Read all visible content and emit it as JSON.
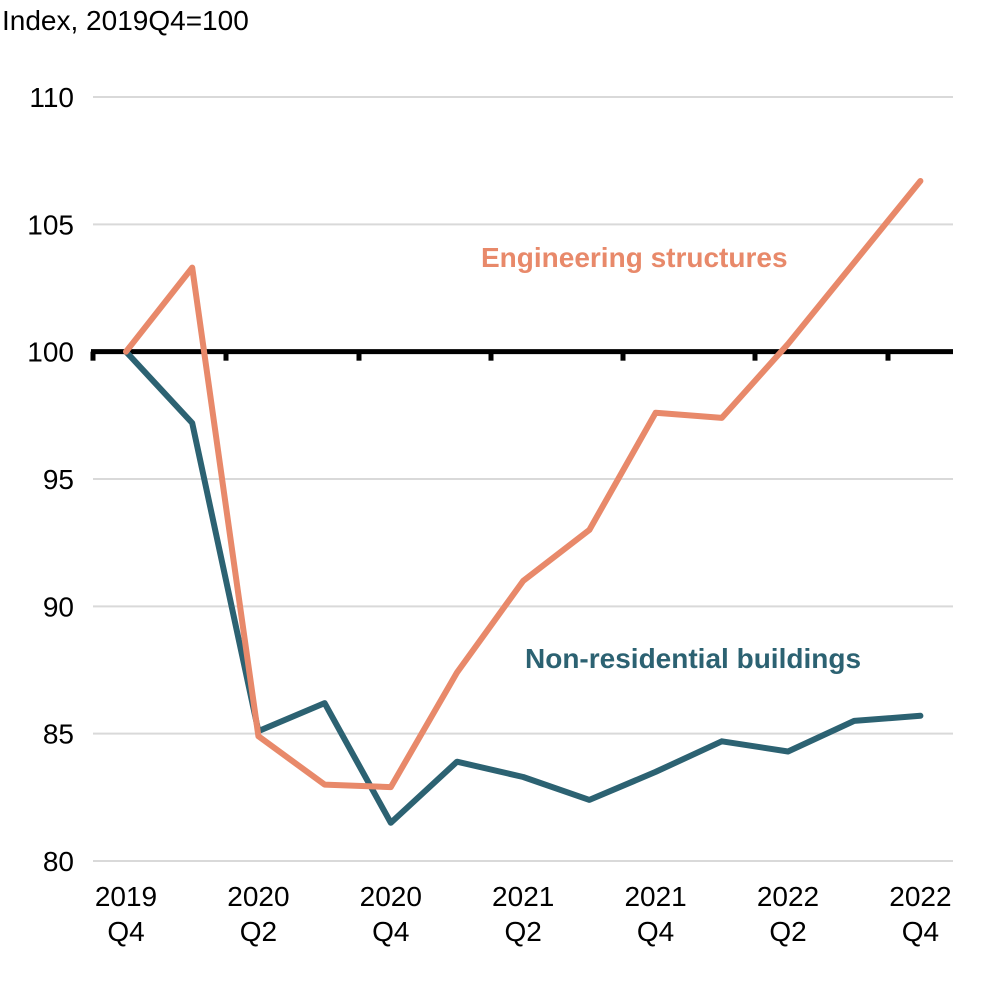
{
  "chart_data": {
    "type": "line",
    "title": "",
    "ylabel": "Index, 2019Q4=100",
    "xlabel": "",
    "ylim": [
      80,
      110
    ],
    "yticks": [
      80,
      85,
      90,
      95,
      100,
      105,
      110
    ],
    "x": [
      "2019Q4",
      "2020Q1",
      "2020Q2",
      "2020Q3",
      "2020Q4",
      "2021Q1",
      "2021Q2",
      "2021Q3",
      "2021Q4",
      "2022Q1",
      "2022Q2",
      "2022Q3",
      "2022Q4"
    ],
    "x_tick_labels": [
      {
        "index": 0,
        "line1": "2019",
        "line2": "Q4"
      },
      {
        "index": 2,
        "line1": "2020",
        "line2": "Q2"
      },
      {
        "index": 4,
        "line1": "2020",
        "line2": "Q4"
      },
      {
        "index": 6,
        "line1": "2021",
        "line2": "Q2"
      },
      {
        "index": 8,
        "line1": "2021",
        "line2": "Q4"
      },
      {
        "index": 10,
        "line1": "2022",
        "line2": "Q2"
      },
      {
        "index": 12,
        "line1": "2022",
        "line2": "Q4"
      }
    ],
    "reference_line": 100,
    "grid": true,
    "series": [
      {
        "name": "Engineering structures",
        "color": "#E8896A",
        "values": [
          100.0,
          103.3,
          84.9,
          83.0,
          82.9,
          87.4,
          91.0,
          93.0,
          97.6,
          97.4,
          100.3,
          103.5,
          106.7
        ]
      },
      {
        "name": "Non-residential buildings",
        "color": "#2C6272",
        "values": [
          100.0,
          97.2,
          85.1,
          86.2,
          81.5,
          83.9,
          83.3,
          82.4,
          83.5,
          84.7,
          84.3,
          85.5,
          85.7
        ]
      }
    ]
  }
}
